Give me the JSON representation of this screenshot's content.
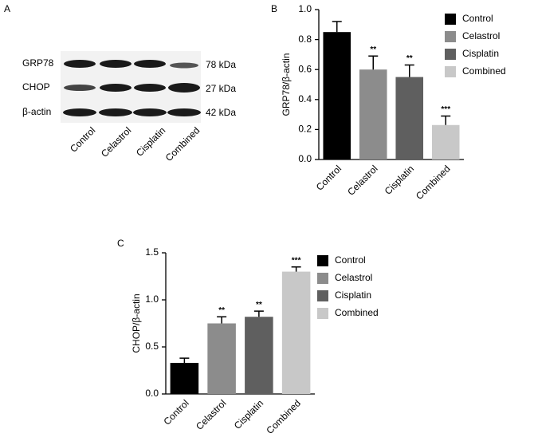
{
  "blot": {
    "panel": "A",
    "rows": [
      {
        "label": "GRP78",
        "size": "78 kDa"
      },
      {
        "label": "CHOP",
        "size": "27 kDa"
      },
      {
        "label": "β-actin",
        "size": "42 kDa"
      }
    ],
    "lanes": [
      "Control",
      "Celastrol",
      "Cisplatin",
      "Combined"
    ]
  },
  "chart_data": [
    {
      "type": "bar",
      "panel": "B",
      "y_label": "GRP78/β-actin",
      "categories": [
        "Control",
        "Celastrol",
        "Cisplatin",
        "Combined"
      ],
      "values": [
        0.85,
        0.6,
        0.55,
        0.23
      ],
      "errors": [
        0.07,
        0.09,
        0.08,
        0.06
      ],
      "annotations": [
        null,
        "**",
        "**",
        "***"
      ],
      "colors": [
        "#000000",
        "#8c8c8c",
        "#5f5f5f",
        "#c8c8c8"
      ],
      "ylim": [
        0,
        1
      ],
      "yticks": [
        {
          "value": 0,
          "label": "0.0"
        },
        0.2,
        0.4,
        0.6,
        0.8,
        {
          "value": 1,
          "label": "1.0"
        }
      ],
      "legend": true
    },
    {
      "type": "bar",
      "panel": "C",
      "y_label": "CHOP/β-actin",
      "categories": [
        "Control",
        "Celastrol",
        "Cisplatin",
        "Combined"
      ],
      "values": [
        0.33,
        0.75,
        0.82,
        1.3
      ],
      "errors": [
        0.05,
        0.07,
        0.06,
        0.05
      ],
      "annotations": [
        null,
        "**",
        "**",
        "***"
      ],
      "colors": [
        "#000000",
        "#8c8c8c",
        "#5f5f5f",
        "#c8c8c8"
      ],
      "ylim": [
        0,
        1.5
      ],
      "yticks": [
        {
          "value": 0,
          "label": "0.0"
        },
        0.5,
        {
          "value": 1,
          "label": "1.0"
        },
        1.5
      ],
      "legend": true
    }
  ]
}
